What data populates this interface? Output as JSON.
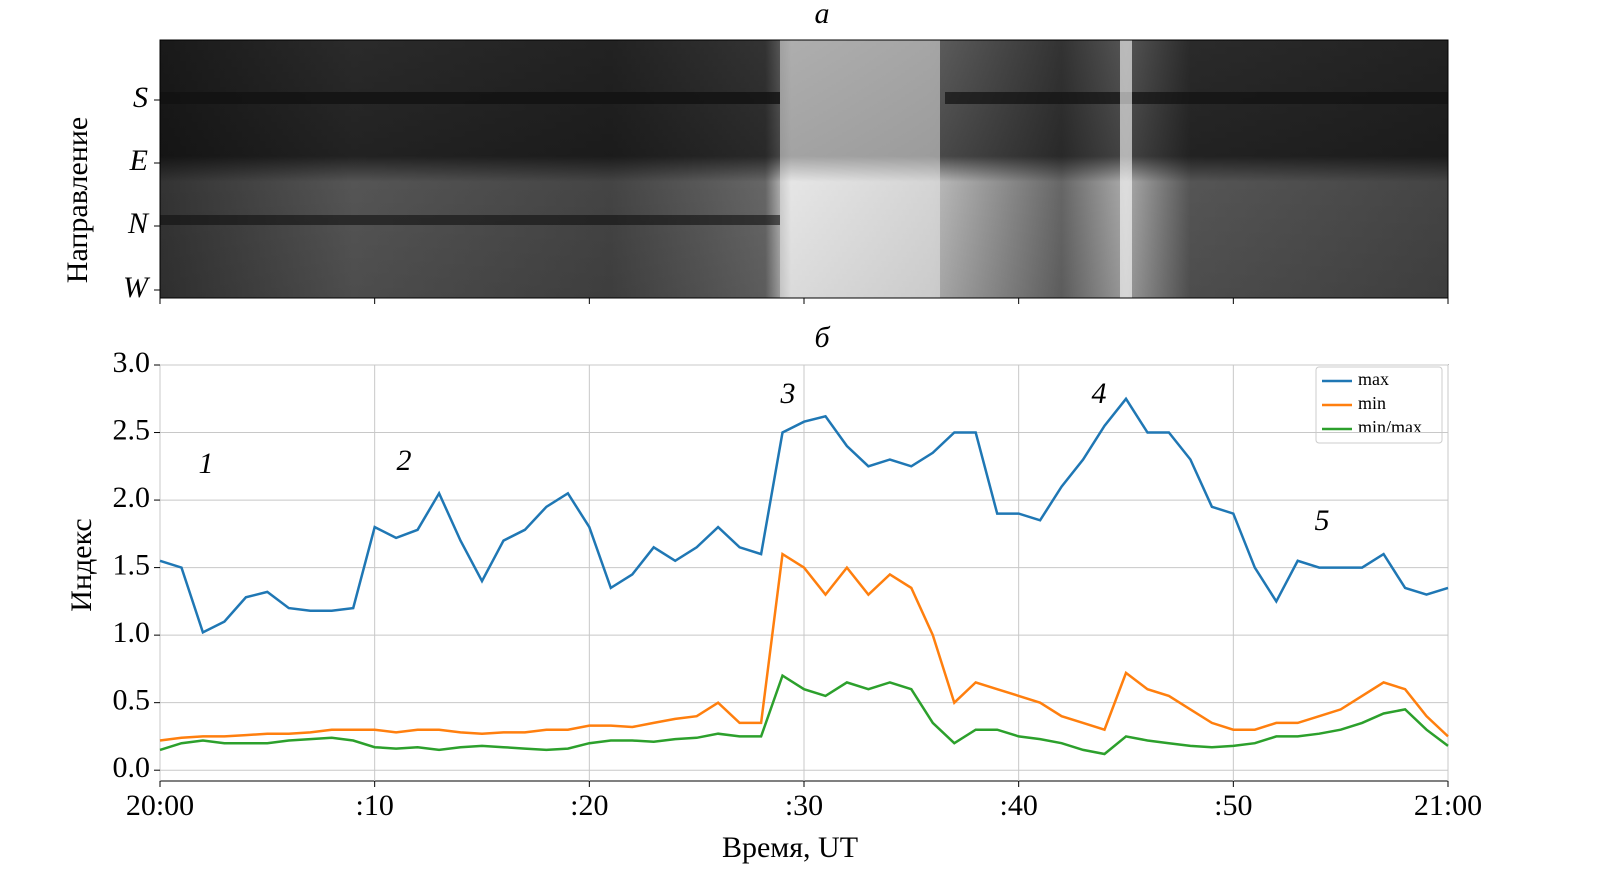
{
  "chart_data": [
    {
      "type": "image",
      "title": "а",
      "ylabel": "Направление",
      "categories": [
        "S",
        "E",
        "N",
        "W"
      ]
    },
    {
      "type": "line",
      "title": "б",
      "xlabel": "Время, UT",
      "ylabel": "Индекс",
      "x": [
        0,
        1,
        2,
        3,
        4,
        5,
        6,
        7,
        8,
        9,
        10,
        11,
        12,
        13,
        14,
        15,
        16,
        17,
        18,
        19,
        20,
        21,
        22,
        23,
        24,
        25,
        26,
        27,
        28,
        29,
        30,
        31,
        32,
        33,
        34,
        35,
        36,
        37,
        38,
        39,
        40,
        41,
        42,
        43,
        44,
        45,
        46,
        47,
        48,
        49,
        50,
        51,
        52,
        53,
        54,
        55,
        56,
        57,
        58,
        59,
        60
      ],
      "xlim": [
        0,
        60
      ],
      "xticks": [
        {
          "value": 0,
          "label": "20:00"
        },
        {
          "value": 10,
          "label": ":10"
        },
        {
          "value": 20,
          "label": ":20"
        },
        {
          "value": 30,
          "label": ":30"
        },
        {
          "value": 40,
          "label": ":40"
        },
        {
          "value": 50,
          "label": ":50"
        },
        {
          "value": 60,
          "label": "21:00"
        }
      ],
      "ylim": [
        -0.08,
        3.0
      ],
      "yticks": [
        {
          "value": 0,
          "label": "0.0"
        },
        0.5,
        {
          "value": 1,
          "label": "1.0"
        },
        1.5,
        {
          "value": 2,
          "label": "2.0"
        },
        2.5,
        {
          "value": 3,
          "label": "3.0"
        }
      ],
      "grid": true,
      "legend": "upper right",
      "annotations": [
        "1",
        "2",
        "3",
        "4",
        "5"
      ],
      "series": [
        {
          "name": "max",
          "color": "#1f77b4",
          "values": [
            1.55,
            1.5,
            1.02,
            1.1,
            1.28,
            1.32,
            1.2,
            1.18,
            1.18,
            1.2,
            1.8,
            1.72,
            1.78,
            2.05,
            1.7,
            1.4,
            1.7,
            1.78,
            1.95,
            2.05,
            1.8,
            1.35,
            1.45,
            1.65,
            1.55,
            1.65,
            1.8,
            1.65,
            1.6,
            2.5,
            2.58,
            2.62,
            2.4,
            2.25,
            2.3,
            2.25,
            2.35,
            2.5,
            2.5,
            1.9,
            1.9,
            1.85,
            2.1,
            2.3,
            2.55,
            2.75,
            2.5,
            2.5,
            2.3,
            1.95,
            1.9,
            1.5,
            1.25,
            1.55,
            1.5,
            1.5,
            1.5,
            1.6,
            1.35,
            1.3,
            1.35
          ]
        },
        {
          "name": "min",
          "color": "#ff7f0e",
          "values": [
            0.22,
            0.24,
            0.25,
            0.25,
            0.26,
            0.27,
            0.27,
            0.28,
            0.3,
            0.3,
            0.3,
            0.28,
            0.3,
            0.3,
            0.28,
            0.27,
            0.28,
            0.28,
            0.3,
            0.3,
            0.33,
            0.33,
            0.32,
            0.35,
            0.38,
            0.4,
            0.5,
            0.35,
            0.35,
            1.6,
            1.5,
            1.3,
            1.5,
            1.3,
            1.45,
            1.35,
            1.0,
            0.5,
            0.65,
            0.6,
            0.55,
            0.5,
            0.4,
            0.35,
            0.3,
            0.72,
            0.6,
            0.55,
            0.45,
            0.35,
            0.3,
            0.3,
            0.35,
            0.35,
            0.4,
            0.45,
            0.55,
            0.65,
            0.6,
            0.4,
            0.25
          ]
        },
        {
          "name": "min/max",
          "color": "#2ca02c",
          "values": [
            0.15,
            0.2,
            0.22,
            0.2,
            0.2,
            0.2,
            0.22,
            0.23,
            0.24,
            0.22,
            0.17,
            0.16,
            0.17,
            0.15,
            0.17,
            0.18,
            0.17,
            0.16,
            0.15,
            0.16,
            0.2,
            0.22,
            0.22,
            0.21,
            0.23,
            0.24,
            0.27,
            0.25,
            0.25,
            0.7,
            0.6,
            0.55,
            0.65,
            0.6,
            0.65,
            0.6,
            0.35,
            0.2,
            0.3,
            0.3,
            0.25,
            0.23,
            0.2,
            0.15,
            0.12,
            0.25,
            0.22,
            0.2,
            0.18,
            0.17,
            0.18,
            0.2,
            0.25,
            0.25,
            0.27,
            0.3,
            0.35,
            0.42,
            0.45,
            0.3,
            0.18
          ]
        }
      ]
    }
  ]
}
